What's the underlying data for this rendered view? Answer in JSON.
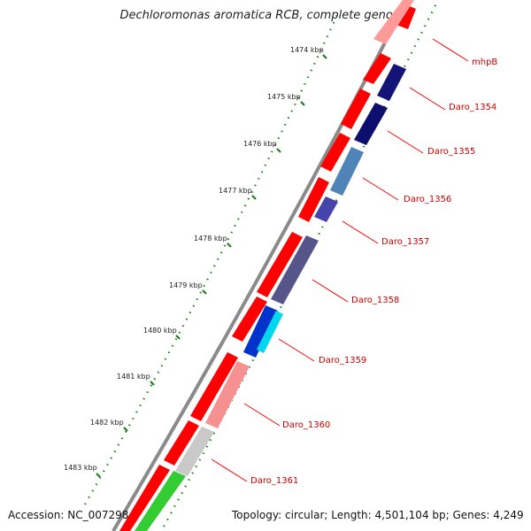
{
  "title": "Dechloromonas aromatica RCB, complete genome",
  "footer": {
    "accession_label": "Accession:",
    "accession": "NC_007298",
    "topology": "Topology: circular; Length: 4,501,104 bp; Genes: 4,249"
  },
  "ticks": [
    "1474 kbp",
    "1475 kbp",
    "1476 kbp",
    "1477 kbp",
    "1478 kbp",
    "1479 kbp",
    "1480 kbp",
    "1481 kbp",
    "1482 kbp",
    "1483 kbp"
  ],
  "gene_labels": [
    "mhpB",
    "Daro_1354",
    "Daro_1355",
    "Daro_1356",
    "Daro_1357",
    "Daro_1358",
    "Daro_1359",
    "Daro_1360",
    "Daro_1361"
  ],
  "colors": {
    "backbone": "#888888",
    "forward_strand": "#ff0000",
    "label": "#cc0000",
    "tick": "#1e7d1e",
    "leader": "#ff0000"
  }
}
